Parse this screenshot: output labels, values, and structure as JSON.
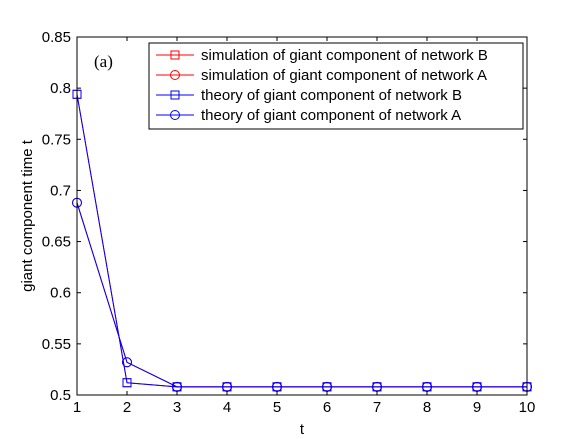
{
  "chart_data": {
    "type": "line",
    "panel_label": "(a)",
    "title": "",
    "xlabel": "t",
    "ylabel": "giant component time t",
    "xlim": [
      1,
      10
    ],
    "ylim": [
      0.5,
      0.85
    ],
    "xticks": [
      1,
      2,
      3,
      4,
      5,
      6,
      7,
      8,
      9,
      10
    ],
    "yticks": [
      0.5,
      0.55,
      0.6,
      0.65,
      0.7,
      0.75,
      0.8,
      0.85
    ],
    "ytick_labels": [
      "0.5",
      "0.55",
      "0.6",
      "0.65",
      "0.7",
      "0.75",
      "0.8",
      "0.85"
    ],
    "grid": false,
    "legend_position": "top-right",
    "x": [
      1,
      2,
      3,
      4,
      5,
      6,
      7,
      8,
      9,
      10
    ],
    "series": [
      {
        "name": "simulation of giant component of network B",
        "color": "#ff0000",
        "marker": "square",
        "values": [
          0.794,
          0.512,
          0.508,
          0.508,
          0.508,
          0.508,
          0.508,
          0.508,
          0.508,
          0.508
        ]
      },
      {
        "name": "simulation of giant component of network A",
        "color": "#ff0000",
        "marker": "circle",
        "values": [
          0.688,
          0.532,
          0.508,
          0.508,
          0.508,
          0.508,
          0.508,
          0.508,
          0.508,
          0.508
        ]
      },
      {
        "name": "theory of giant component of network B",
        "color": "#0000ff",
        "marker": "square",
        "values": [
          0.794,
          0.512,
          0.508,
          0.508,
          0.508,
          0.508,
          0.508,
          0.508,
          0.508,
          0.508
        ]
      },
      {
        "name": "theory of giant component of network A",
        "color": "#0000ff",
        "marker": "circle",
        "values": [
          0.688,
          0.532,
          0.508,
          0.508,
          0.508,
          0.508,
          0.508,
          0.508,
          0.508,
          0.508
        ]
      }
    ]
  }
}
